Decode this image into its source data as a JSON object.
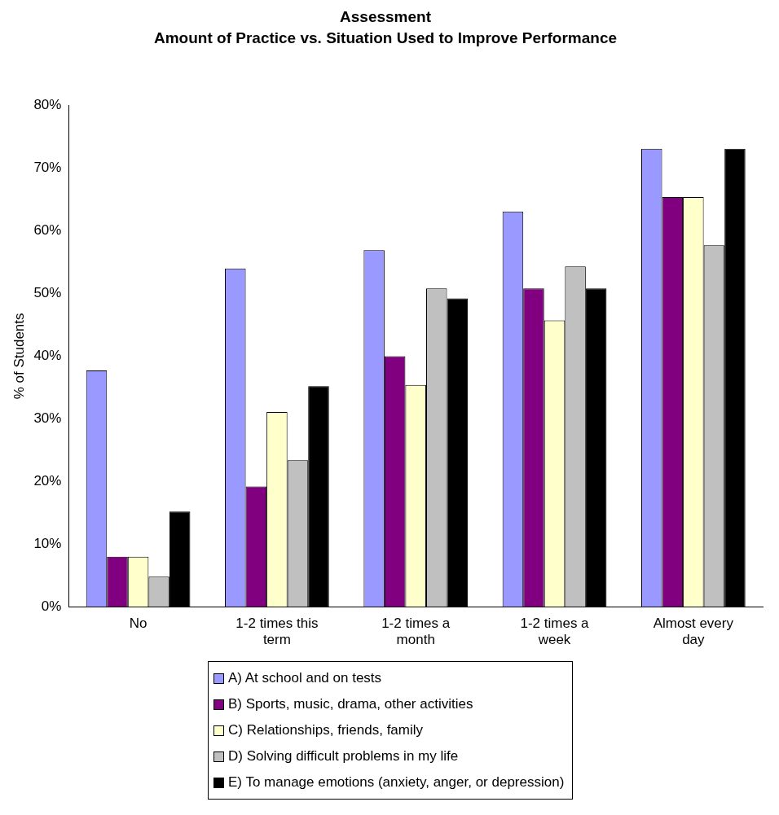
{
  "chart_data": {
    "type": "bar",
    "title": "Assessment",
    "subtitle": "Amount of Practice vs. Situation Used to Improve Performance",
    "ylabel": "% of Students",
    "categories": [
      "No",
      "1-2 times this term",
      "1-2 times a month",
      "1-2 times a week",
      "Almost every day"
    ],
    "series": [
      {
        "name": "A) At school and on tests",
        "color": "#9999ff",
        "values": [
          37.7,
          54,
          56.9,
          63.1,
          73.1
        ]
      },
      {
        "name": "B) Sports, music, drama, other activities",
        "color": "#800080",
        "values": [
          8,
          19.2,
          40,
          50.8,
          65.4
        ]
      },
      {
        "name": "C) Relationships, friends, family",
        "color": "#ffffcc",
        "values": [
          8,
          31.1,
          35.4,
          45.7,
          65.4
        ]
      },
      {
        "name": "D) Solving difficult problems in my life",
        "color": "#c0c0c0",
        "values": [
          4.8,
          23.4,
          50.8,
          54.3,
          57.7
        ]
      },
      {
        "name": "E) To manage emotions (anxiety, anger, or depression)",
        "color": "#000000",
        "values": [
          15.2,
          35.2,
          49.2,
          50.8,
          73.1
        ]
      }
    ],
    "ylim": [
      0,
      80
    ],
    "yticks": [
      {
        "value": 0,
        "label": "0%"
      },
      {
        "value": 10,
        "label": "10%"
      },
      {
        "value": 20,
        "label": "20%"
      },
      {
        "value": 30,
        "label": "30%"
      },
      {
        "value": 40,
        "label": "40%"
      },
      {
        "value": 50,
        "label": "50%"
      },
      {
        "value": 60,
        "label": "60%"
      },
      {
        "value": 70,
        "label": "70%"
      },
      {
        "value": 80,
        "label": "80%"
      }
    ],
    "grid": false,
    "legend": "bottom"
  }
}
